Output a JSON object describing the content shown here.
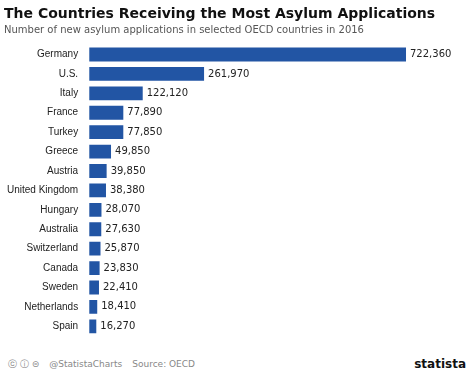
{
  "chart_data": {
    "type": "bar",
    "orientation": "horizontal",
    "title": "The Countries Receiving the Most Asylum Applications",
    "subtitle": "Number of new asylum applications in selected OECD countries in 2016",
    "source": "Source: OECD",
    "annotations": [
      "ⓒ ⓘ ⊜",
      "@StatistaCharts",
      "statista"
    ],
    "categories": [
      "Germany",
      "U.S.",
      "Italy",
      "France",
      "Turkey",
      "Greece",
      "Austria",
      "United Kingdom",
      "Hungary",
      "Australia",
      "Switzerland",
      "Canada",
      "Sweden",
      "Netherlands",
      "Spain"
    ],
    "values": [
      722360,
      261970,
      122120,
      77890,
      77850,
      49850,
      39850,
      38380,
      28070,
      27630,
      25870,
      23830,
      22410,
      18410,
      16270
    ],
    "value_labels": [
      "722,360",
      "261,970",
      "122,120",
      "77,890",
      "77,850",
      "49,850",
      "39,850",
      "38,380",
      "28,070",
      "27,630",
      "25,870",
      "23,830",
      "22,410",
      "18,410",
      "16,270"
    ],
    "data_labels": true,
    "color": "#2255a4",
    "xlim": [
      0,
      850000
    ],
    "grid": false,
    "tick_labels": "y"
  }
}
